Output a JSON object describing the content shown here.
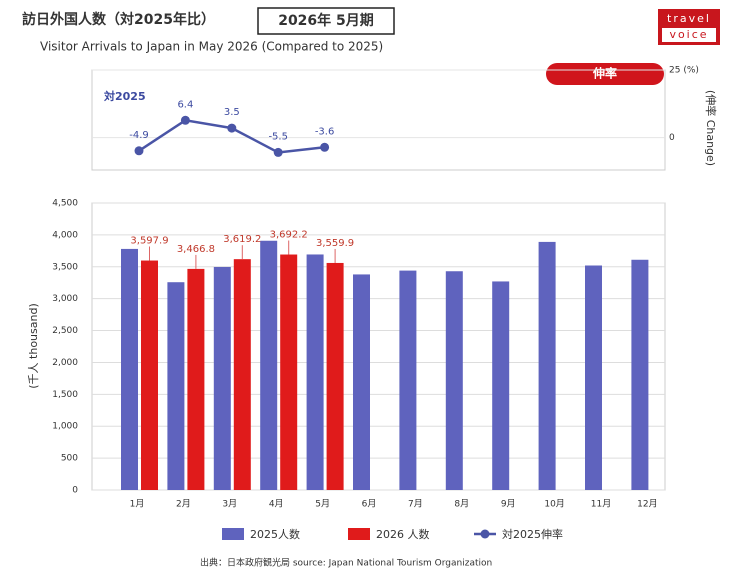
{
  "chart_data": {
    "type": "bar",
    "title": "訪日外国人数（対2025年比）",
    "period": "2026年 5月期",
    "subtitle": "Visitor Arrivals to Japan in May 2026 (Compared to  2025)",
    "logo": [
      "travel",
      "voice"
    ],
    "source": "出典：日本政府観光局  source: Japan National Tourism Organization",
    "ylabel": "(千人 thousand)",
    "y2label": "(伸率 Change)",
    "y2badge": "伸率",
    "annotation": "対2025",
    "categories": [
      "1月",
      "2月",
      "3月",
      "4月",
      "5月",
      "6月",
      "7月",
      "8月",
      "9月",
      "10月",
      "11月",
      "12月"
    ],
    "series": [
      {
        "name": "2025人数",
        "color": "#5f63be",
        "values": [
          3780,
          3258,
          3497,
          3908,
          3693,
          3380,
          3440,
          3430,
          3270,
          3890,
          3520,
          3610
        ]
      },
      {
        "name": "2026 人数",
        "color": "#e01b1b",
        "values": [
          3597.9,
          3466.8,
          3619.2,
          3692.2,
          3559.9,
          null,
          null,
          null,
          null,
          null,
          null,
          null
        ],
        "value_labels": [
          "3,597.9",
          "3,466.8",
          "3,619.2",
          "3,692.2",
          "3,559.9",
          null,
          null,
          null,
          null,
          null,
          null,
          null
        ]
      },
      {
        "name": "対2025伸率",
        "type": "line",
        "axis": "y2",
        "color": "#4a55a6",
        "values": [
          -4.9,
          6.4,
          3.5,
          -5.5,
          -3.6,
          null,
          null,
          null,
          null,
          null,
          null,
          null
        ]
      }
    ],
    "ylim": [
      0,
      4500
    ],
    "yticks": [
      0,
      500,
      {
        "value": 1000,
        "label": "1,000"
      },
      {
        "value": 1500,
        "label": "1,500"
      },
      {
        "value": 2000,
        "label": "2,000"
      },
      {
        "value": 2500,
        "label": "2,500"
      },
      {
        "value": 3000,
        "label": "3,000"
      },
      {
        "value": 3500,
        "label": "3,500"
      },
      {
        "value": 4000,
        "label": "4,000"
      },
      {
        "value": 4500,
        "label": "4,500"
      }
    ],
    "y2lim": [
      -12,
      25
    ],
    "y2ticks": [
      0,
      {
        "value": 25,
        "label": "25 (%)"
      }
    ],
    "grid": true
  }
}
